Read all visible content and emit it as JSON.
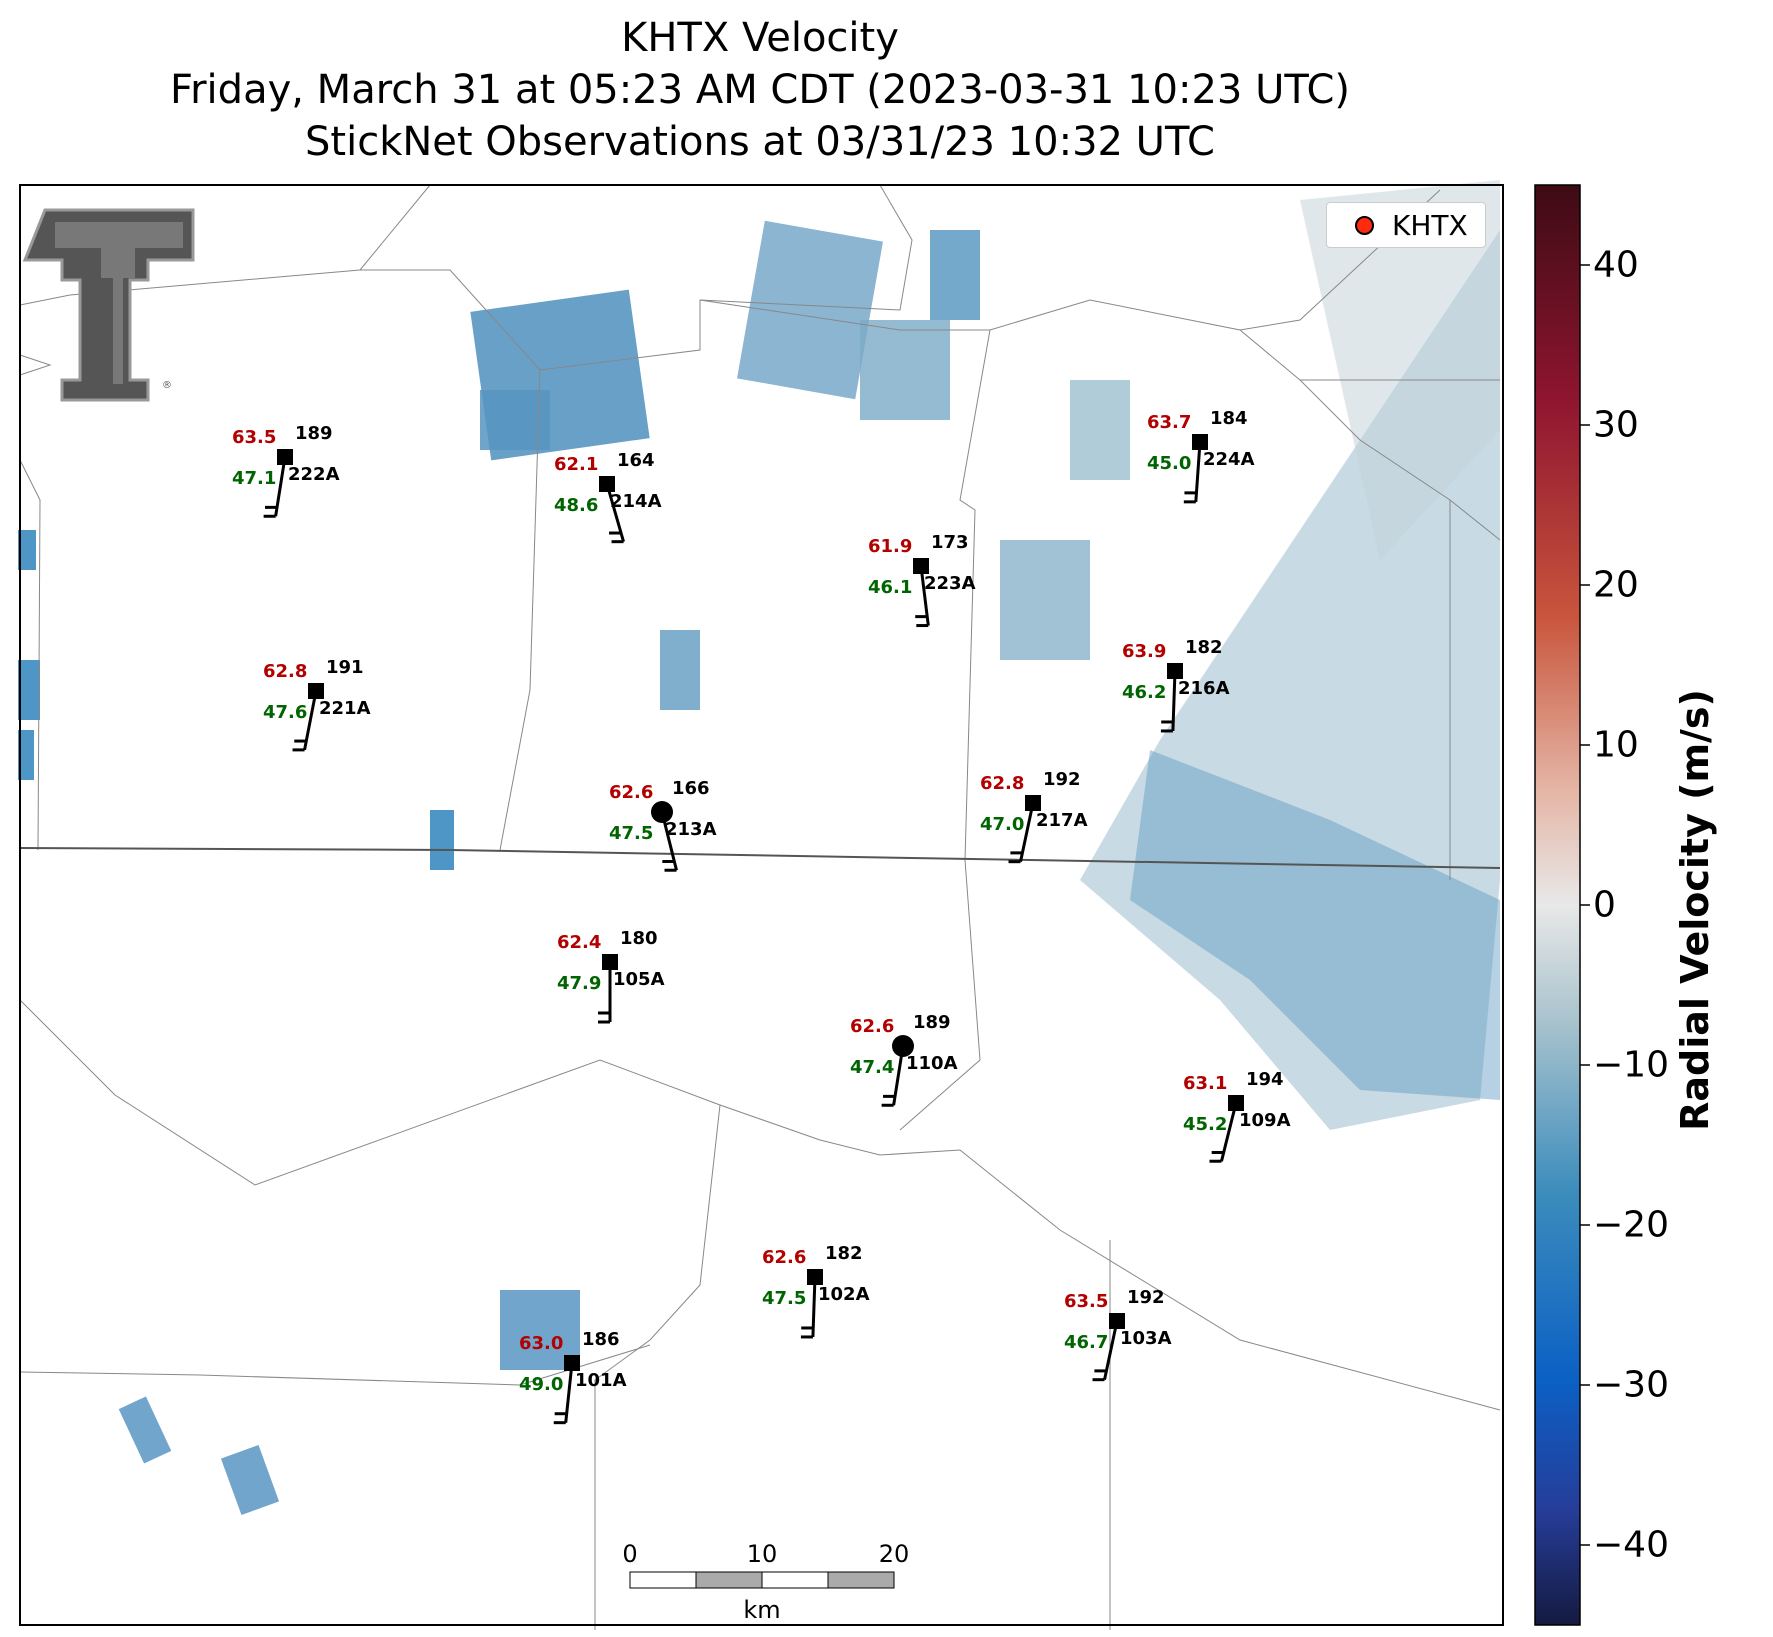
{
  "title": {
    "line1": "KHTX Velocity",
    "line2": "Friday, March 31 at 05:23 AM CDT (2023-03-31 10:23 UTC)",
    "line3": "StickNet Observations at 03/31/23 10:32 UTC"
  },
  "legend": {
    "label": "KHTX",
    "marker_color": "#ff2a10"
  },
  "colorbar": {
    "label": "Radial Velocity (m/s)",
    "ticks": [
      "40",
      "30",
      "20",
      "10",
      "0",
      "−10",
      "−20",
      "−30",
      "−40"
    ],
    "range": [
      -45,
      45
    ]
  },
  "scale_bar": {
    "ticks": [
      "0",
      "10",
      "20"
    ],
    "unit": "km"
  },
  "logo": {
    "name": "texas-tech-double-t-logo"
  },
  "stations": [
    {
      "id": "222A",
      "temp": "63.5",
      "dew": "47.1",
      "dir": "189"
    },
    {
      "id": "214A",
      "temp": "62.1",
      "dew": "48.6",
      "dir": "164"
    },
    {
      "id": "224A",
      "temp": "63.7",
      "dew": "45.0",
      "dir": "184"
    },
    {
      "id": "223A",
      "temp": "61.9",
      "dew": "46.1",
      "dir": "173"
    },
    {
      "id": "221A",
      "temp": "62.8",
      "dew": "47.6",
      "dir": "191"
    },
    {
      "id": "216A",
      "temp": "63.9",
      "dew": "46.2",
      "dir": "182"
    },
    {
      "id": "213A",
      "temp": "62.6",
      "dew": "47.5",
      "dir": "166"
    },
    {
      "id": "217A",
      "temp": "62.8",
      "dew": "47.0",
      "dir": "192"
    },
    {
      "id": "105A",
      "temp": "62.4",
      "dew": "47.9",
      "dir": "180"
    },
    {
      "id": "110A",
      "temp": "62.6",
      "dew": "47.4",
      "dir": "189"
    },
    {
      "id": "109A",
      "temp": "63.1",
      "dew": "45.2",
      "dir": "194"
    },
    {
      "id": "102A",
      "temp": "62.6",
      "dew": "47.5",
      "dir": "182"
    },
    {
      "id": "103A",
      "temp": "63.5",
      "dew": "46.7",
      "dir": "192"
    },
    {
      "id": "101A",
      "temp": "63.0",
      "dew": "49.0",
      "dir": "186"
    }
  ],
  "colors": {
    "temp": "#b30000",
    "dew": "#006400"
  }
}
